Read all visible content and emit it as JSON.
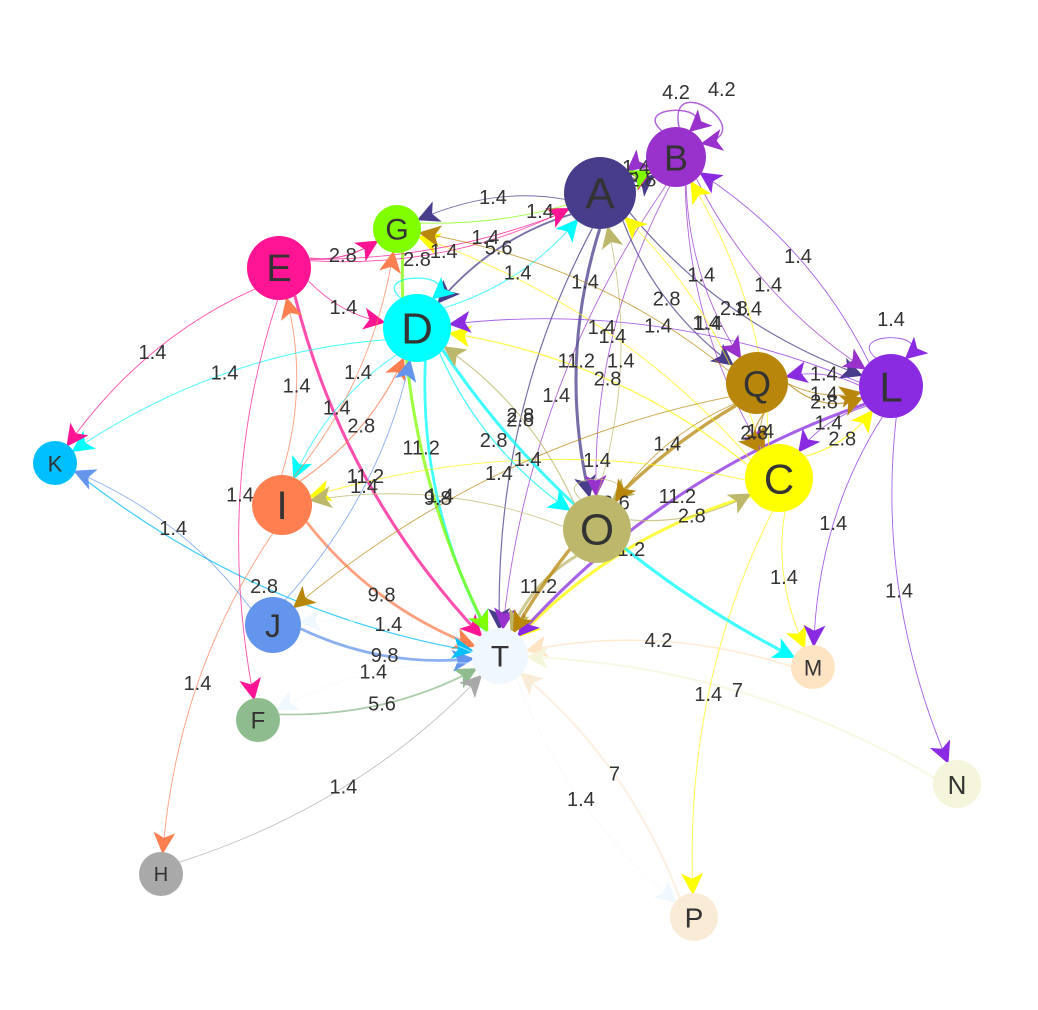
{
  "graph": {
    "nodes": [
      {
        "id": "A",
        "label": "A",
        "color": "#483D8B"
      },
      {
        "id": "B",
        "label": "B",
        "color": "#9932CC"
      },
      {
        "id": "C",
        "label": "C",
        "color": "#FFFF00"
      },
      {
        "id": "D",
        "label": "D",
        "color": "#00FFFF"
      },
      {
        "id": "E",
        "label": "E",
        "color": "#FF1493"
      },
      {
        "id": "F",
        "label": "F",
        "color": "#8FBC8F"
      },
      {
        "id": "G",
        "label": "G",
        "color": "#7FFF00"
      },
      {
        "id": "H",
        "label": "H",
        "color": "#A9A9A9"
      },
      {
        "id": "I",
        "label": "I",
        "color": "#FF7F50"
      },
      {
        "id": "J",
        "label": "J",
        "color": "#6495ED"
      },
      {
        "id": "K",
        "label": "K",
        "color": "#00BFFF"
      },
      {
        "id": "L",
        "label": "L",
        "color": "#8A2BE2"
      },
      {
        "id": "M",
        "label": "M",
        "color": "#FFE4C4"
      },
      {
        "id": "N",
        "label": "N",
        "color": "#F5F5DC"
      },
      {
        "id": "O",
        "label": "O",
        "color": "#BDB76B"
      },
      {
        "id": "P",
        "label": "P",
        "color": "#FAEBD7"
      },
      {
        "id": "Q",
        "label": "Q",
        "color": "#B8860B"
      },
      {
        "id": "T",
        "label": "T",
        "color": "#F0F8FF"
      }
    ],
    "edges": [
      {
        "from": "A",
        "to": "T",
        "label": "2.8"
      },
      {
        "from": "B",
        "to": "T",
        "label": "1.4"
      },
      {
        "from": "C",
        "to": "T",
        "label": "11.2"
      },
      {
        "from": "D",
        "to": "T",
        "label": "9.8"
      },
      {
        "from": "E",
        "to": "T",
        "label": "11.2"
      },
      {
        "from": "F",
        "to": "T",
        "label": "5.6"
      },
      {
        "from": "G",
        "to": "T",
        "label": "11.2"
      },
      {
        "from": "H",
        "to": "T",
        "label": "1.4"
      },
      {
        "from": "I",
        "to": "T",
        "label": "9.8"
      },
      {
        "from": "J",
        "to": "T",
        "label": "9.8"
      },
      {
        "from": "K",
        "to": "T",
        "label": "2.8"
      },
      {
        "from": "L",
        "to": "T",
        "label": "11.2"
      },
      {
        "from": "M",
        "to": "T",
        "label": "4.2"
      },
      {
        "from": "N",
        "to": "T",
        "label": "7"
      },
      {
        "from": "O",
        "to": "T",
        "label": "11.2"
      },
      {
        "from": "P",
        "to": "T",
        "label": "7"
      },
      {
        "from": "Q",
        "to": "T",
        "label": "12.6"
      },
      {
        "from": "T",
        "to": "J",
        "label": "1.4"
      },
      {
        "from": "T",
        "to": "P",
        "label": "1.4"
      },
      {
        "from": "T",
        "to": "F",
        "label": "1.4"
      },
      {
        "from": "A",
        "to": "B",
        "label": "2.8"
      },
      {
        "from": "A",
        "to": "D",
        "label": "5.6"
      },
      {
        "from": "A",
        "to": "Q",
        "label": "2.8"
      },
      {
        "from": "A",
        "to": "L",
        "label": "2.8"
      },
      {
        "from": "A",
        "to": "O",
        "label": "11.2"
      },
      {
        "from": "A",
        "to": "G",
        "label": "1.4"
      },
      {
        "from": "B",
        "to": "A",
        "label": "1.4"
      },
      {
        "from": "B",
        "to": "B",
        "label": "4.2"
      },
      {
        "from": "B",
        "to": "B",
        "label": "4.2"
      },
      {
        "from": "B",
        "to": "L",
        "label": "1.4"
      },
      {
        "from": "B",
        "to": "Q",
        "label": "1.4"
      },
      {
        "from": "B",
        "to": "C",
        "label": "1.4"
      },
      {
        "from": "B",
        "to": "O",
        "label": "1.4"
      },
      {
        "from": "C",
        "to": "B",
        "label": "1.4"
      },
      {
        "from": "C",
        "to": "A",
        "label": "1.4"
      },
      {
        "from": "C",
        "to": "D",
        "label": "2.8"
      },
      {
        "from": "C",
        "to": "L",
        "label": "2.8"
      },
      {
        "from": "C",
        "to": "M",
        "label": "1.4"
      },
      {
        "from": "C",
        "to": "P",
        "label": "1.4"
      },
      {
        "from": "C",
        "to": "I",
        "label": "1.4"
      },
      {
        "from": "C",
        "to": "G",
        "label": "1.4"
      },
      {
        "from": "D",
        "to": "A",
        "label": "1.4"
      },
      {
        "from": "D",
        "to": "K",
        "label": "1.4"
      },
      {
        "from": "D",
        "to": "I",
        "label": "1.4"
      },
      {
        "from": "D",
        "to": "O",
        "label": "2.8"
      },
      {
        "from": "D",
        "to": "M",
        "label": "11.2"
      },
      {
        "from": "D",
        "to": "D",
        "label": "2.8"
      },
      {
        "from": "E",
        "to": "K",
        "label": "1.4"
      },
      {
        "from": "E",
        "to": "F",
        "label": "1.4"
      },
      {
        "from": "E",
        "to": "G",
        "label": "2.8"
      },
      {
        "from": "E",
        "to": "B",
        "label": "1.4"
      },
      {
        "from": "E",
        "to": "A",
        "label": "1.4"
      },
      {
        "from": "E",
        "to": "D",
        "label": "1.4"
      },
      {
        "from": "G",
        "to": "B",
        "label": "1.4"
      },
      {
        "from": "I",
        "to": "E",
        "label": "1.4"
      },
      {
        "from": "I",
        "to": "D",
        "label": "2.8"
      },
      {
        "from": "I",
        "to": "H",
        "label": "1.4"
      },
      {
        "from": "I",
        "to": "G",
        "label": "1.4"
      },
      {
        "from": "J",
        "to": "K",
        "label": "1.4"
      },
      {
        "from": "J",
        "to": "D",
        "label": "1.4"
      },
      {
        "from": "L",
        "to": "D",
        "label": "1.4"
      },
      {
        "from": "L",
        "to": "C",
        "label": "1.4"
      },
      {
        "from": "L",
        "to": "N",
        "label": "1.4"
      },
      {
        "from": "L",
        "to": "M",
        "label": "1.4"
      },
      {
        "from": "L",
        "to": "L",
        "label": "1.4"
      },
      {
        "from": "L",
        "to": "B",
        "label": "1.4"
      },
      {
        "from": "L",
        "to": "Q",
        "label": "1.4"
      },
      {
        "from": "O",
        "to": "D",
        "label": "2.8"
      },
      {
        "from": "O",
        "to": "A",
        "label": "1.4"
      },
      {
        "from": "O",
        "to": "I",
        "label": "1.4"
      },
      {
        "from": "O",
        "to": "C",
        "label": "2.8"
      },
      {
        "from": "O",
        "to": "O",
        "label": "1.4"
      },
      {
        "from": "Q",
        "to": "G",
        "label": "1.4"
      },
      {
        "from": "Q",
        "to": "L",
        "label": "1.4"
      },
      {
        "from": "Q",
        "to": "C",
        "label": "1.4"
      },
      {
        "from": "Q",
        "to": "J",
        "label": "1.4"
      },
      {
        "from": "Q",
        "to": "O",
        "label": "1.4"
      },
      {
        "from": "Q",
        "to": "L",
        "label": "2.8"
      },
      {
        "from": "Q",
        "to": "C",
        "label": "2.8"
      }
    ]
  }
}
